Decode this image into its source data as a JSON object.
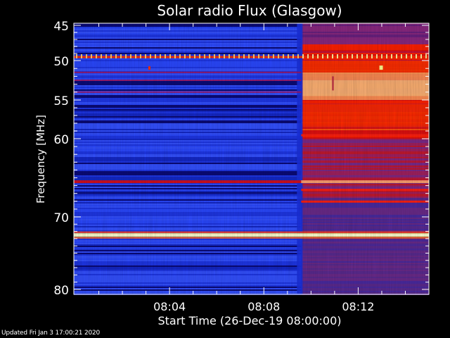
{
  "chart_data": {
    "type": "heatmap",
    "title": "Solar radio Flux (Glasgow)",
    "xlabel": "Start Time (26-Dec-19 08:00:00)",
    "ylabel": "Frequency [MHz]",
    "x_start": "08:00:00",
    "x_end": "08:15:00",
    "x_ticks": [
      "08:04",
      "08:08",
      "08:12"
    ],
    "x_tick_minutes": [
      4,
      8,
      12
    ],
    "y_range_mhz": [
      45,
      80
    ],
    "y_ticks": [
      45,
      50,
      55,
      60,
      70,
      80
    ],
    "y_scale": "nonlinear",
    "event_onset": "08:09:35",
    "bright_bands_mhz": [
      49.5,
      65.5,
      72.5
    ],
    "colormap": {
      "low": "#0a0a78",
      "mid_low": "#1f3bff",
      "mid": "#8a2a8a",
      "high": "#ff1a00",
      "peak": "#ffff80"
    }
  },
  "footer": {
    "updated": "Updated Fri Jan  3 17:00:21 2020"
  }
}
